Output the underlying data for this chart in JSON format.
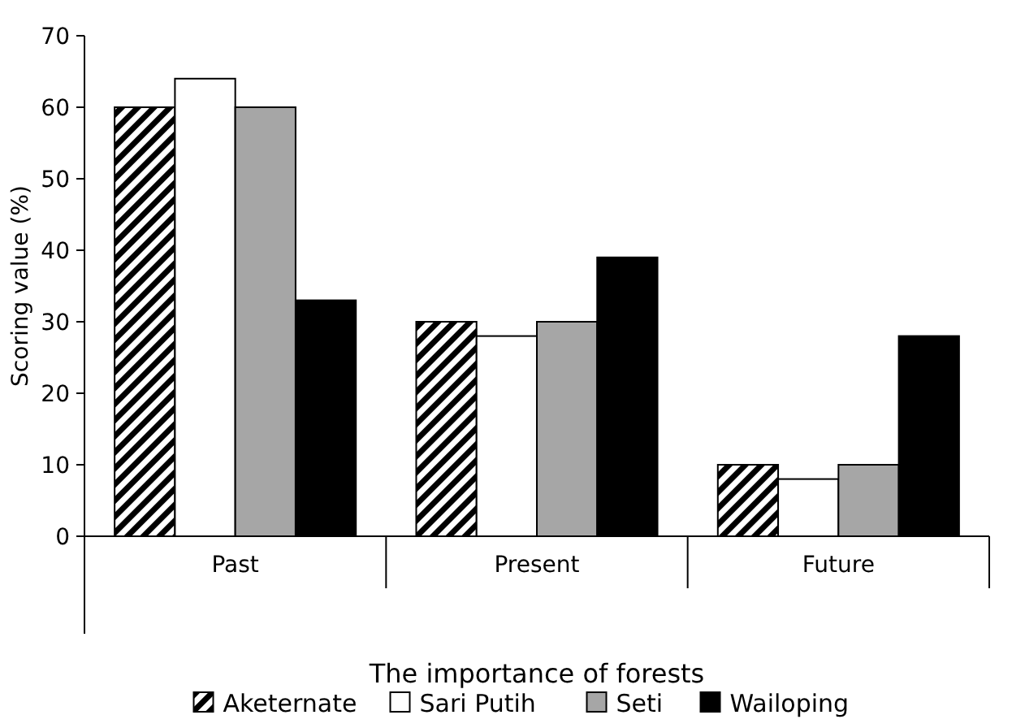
{
  "chart_data": {
    "type": "bar",
    "xlabel": "The importance of forests",
    "ylabel": "Scoring value (%)",
    "categories": [
      "Past",
      "Present",
      "Future"
    ],
    "series": [
      {
        "name": "Aketernate",
        "color": "#000000",
        "values": [
          60,
          30,
          10
        ]
      },
      {
        "name": "Sari Putih",
        "color": "#ffffff",
        "values": [
          64,
          28,
          8
        ]
      },
      {
        "name": "Seti",
        "color": "#a6a6a6",
        "values": [
          60,
          30,
          10
        ]
      },
      {
        "name": "Wailoping",
        "color": "#000000",
        "values": [
          33,
          39,
          28
        ]
      }
    ],
    "ylim": [
      0,
      70
    ],
    "yticks": [
      0,
      10,
      20,
      30,
      40,
      50,
      60,
      70
    ],
    "grid": false,
    "legend": "bottom"
  }
}
